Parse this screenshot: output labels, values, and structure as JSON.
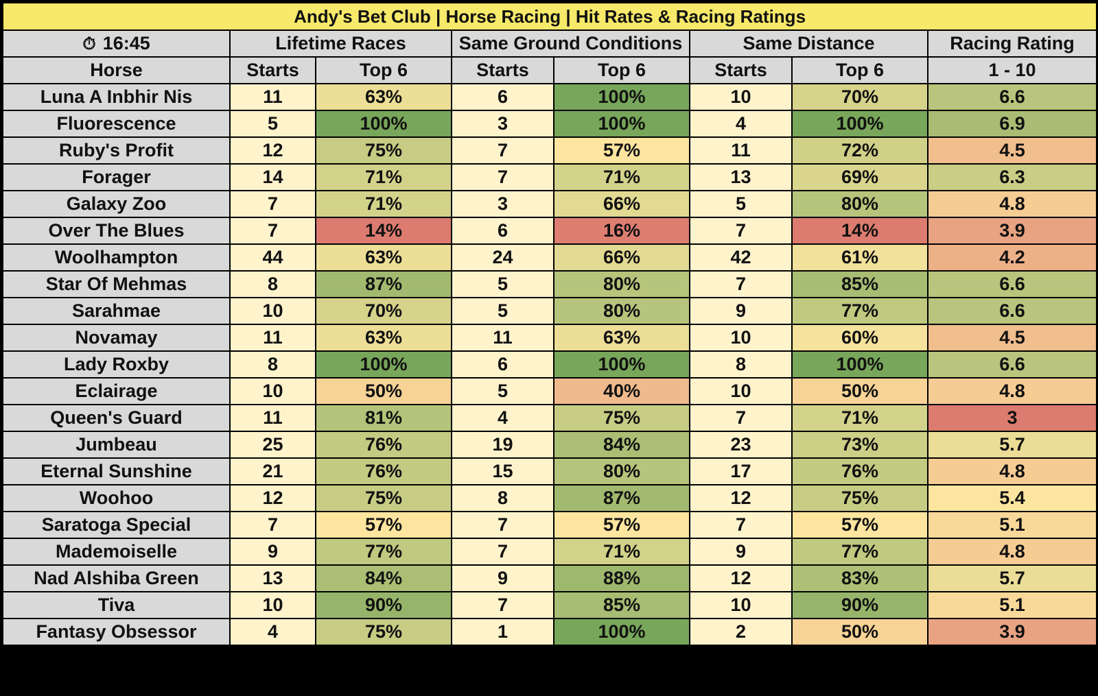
{
  "title": "Andy's Bet Club | Horse Racing | Hit Rates & Racing Ratings",
  "race_time": "16:45",
  "clock_icon": "stopwatch-icon",
  "groups": [
    "Lifetime Races",
    "Same Ground Conditions",
    "Same Distance",
    "Racing Rating"
  ],
  "subheaders": [
    "Horse",
    "Starts",
    "Top 6",
    "Starts",
    "Top 6",
    "Starts",
    "Top 6",
    "1 - 10"
  ],
  "rows": [
    {
      "horse": "Luna A Inbhir Nis",
      "lt_starts": "11",
      "lt_top6": "63%",
      "sg_starts": "6",
      "sg_top6": "100%",
      "sd_starts": "10",
      "sd_top6": "70%",
      "rating": "6.6"
    },
    {
      "horse": "Fluorescence",
      "lt_starts": "5",
      "lt_top6": "100%",
      "sg_starts": "3",
      "sg_top6": "100%",
      "sd_starts": "4",
      "sd_top6": "100%",
      "rating": "6.9"
    },
    {
      "horse": "Ruby's Profit",
      "lt_starts": "12",
      "lt_top6": "75%",
      "sg_starts": "7",
      "sg_top6": "57%",
      "sd_starts": "11",
      "sd_top6": "72%",
      "rating": "4.5"
    },
    {
      "horse": "Forager",
      "lt_starts": "14",
      "lt_top6": "71%",
      "sg_starts": "7",
      "sg_top6": "71%",
      "sd_starts": "13",
      "sd_top6": "69%",
      "rating": "6.3"
    },
    {
      "horse": "Galaxy Zoo",
      "lt_starts": "7",
      "lt_top6": "71%",
      "sg_starts": "3",
      "sg_top6": "66%",
      "sd_starts": "5",
      "sd_top6": "80%",
      "rating": "4.8"
    },
    {
      "horse": "Over The Blues",
      "lt_starts": "7",
      "lt_top6": "14%",
      "sg_starts": "6",
      "sg_top6": "16%",
      "sd_starts": "7",
      "sd_top6": "14%",
      "rating": "3.9"
    },
    {
      "horse": "Woolhampton",
      "lt_starts": "44",
      "lt_top6": "63%",
      "sg_starts": "24",
      "sg_top6": "66%",
      "sd_starts": "42",
      "sd_top6": "61%",
      "rating": "4.2"
    },
    {
      "horse": "Star Of Mehmas",
      "lt_starts": "8",
      "lt_top6": "87%",
      "sg_starts": "5",
      "sg_top6": "80%",
      "sd_starts": "7",
      "sd_top6": "85%",
      "rating": "6.6"
    },
    {
      "horse": "Sarahmae",
      "lt_starts": "10",
      "lt_top6": "70%",
      "sg_starts": "5",
      "sg_top6": "80%",
      "sd_starts": "9",
      "sd_top6": "77%",
      "rating": "6.6"
    },
    {
      "horse": "Novamay",
      "lt_starts": "11",
      "lt_top6": "63%",
      "sg_starts": "11",
      "sg_top6": "63%",
      "sd_starts": "10",
      "sd_top6": "60%",
      "rating": "4.5"
    },
    {
      "horse": "Lady Roxby",
      "lt_starts": "8",
      "lt_top6": "100%",
      "sg_starts": "6",
      "sg_top6": "100%",
      "sd_starts": "8",
      "sd_top6": "100%",
      "rating": "6.6"
    },
    {
      "horse": "Eclairage",
      "lt_starts": "10",
      "lt_top6": "50%",
      "sg_starts": "5",
      "sg_top6": "40%",
      "sd_starts": "10",
      "sd_top6": "50%",
      "rating": "4.8"
    },
    {
      "horse": "Queen's Guard",
      "lt_starts": "11",
      "lt_top6": "81%",
      "sg_starts": "4",
      "sg_top6": "75%",
      "sd_starts": "7",
      "sd_top6": "71%",
      "rating": "3"
    },
    {
      "horse": "Jumbeau",
      "lt_starts": "25",
      "lt_top6": "76%",
      "sg_starts": "19",
      "sg_top6": "84%",
      "sd_starts": "23",
      "sd_top6": "73%",
      "rating": "5.7"
    },
    {
      "horse": "Eternal Sunshine",
      "lt_starts": "21",
      "lt_top6": "76%",
      "sg_starts": "15",
      "sg_top6": "80%",
      "sd_starts": "17",
      "sd_top6": "76%",
      "rating": "4.8"
    },
    {
      "horse": "Woohoo",
      "lt_starts": "12",
      "lt_top6": "75%",
      "sg_starts": "8",
      "sg_top6": "87%",
      "sd_starts": "12",
      "sd_top6": "75%",
      "rating": "5.4"
    },
    {
      "horse": "Saratoga Special",
      "lt_starts": "7",
      "lt_top6": "57%",
      "sg_starts": "7",
      "sg_top6": "57%",
      "sd_starts": "7",
      "sd_top6": "57%",
      "rating": "5.1"
    },
    {
      "horse": "Mademoiselle",
      "lt_starts": "9",
      "lt_top6": "77%",
      "sg_starts": "7",
      "sg_top6": "71%",
      "sd_starts": "9",
      "sd_top6": "77%",
      "rating": "4.8"
    },
    {
      "horse": "Nad Alshiba Green",
      "lt_starts": "13",
      "lt_top6": "84%",
      "sg_starts": "9",
      "sg_top6": "88%",
      "sd_starts": "12",
      "sd_top6": "83%",
      "rating": "5.7"
    },
    {
      "horse": "Tiva",
      "lt_starts": "10",
      "lt_top6": "90%",
      "sg_starts": "7",
      "sg_top6": "85%",
      "sd_starts": "10",
      "sd_top6": "90%",
      "rating": "5.1"
    },
    {
      "horse": "Fantasy Obsessor",
      "lt_starts": "4",
      "lt_top6": "75%",
      "sg_starts": "1",
      "sg_top6": "100%",
      "sd_starts": "2",
      "sd_top6": "50%",
      "rating": "3.9"
    }
  ],
  "colors": {
    "title_bg": "#f7e96a",
    "header_bg": "#d9d9d9",
    "starts_bg": "#fff3cc",
    "scale_low": "#dc7b6f",
    "scale_mid": "#fde6a0",
    "scale_high": "#78a65a"
  }
}
